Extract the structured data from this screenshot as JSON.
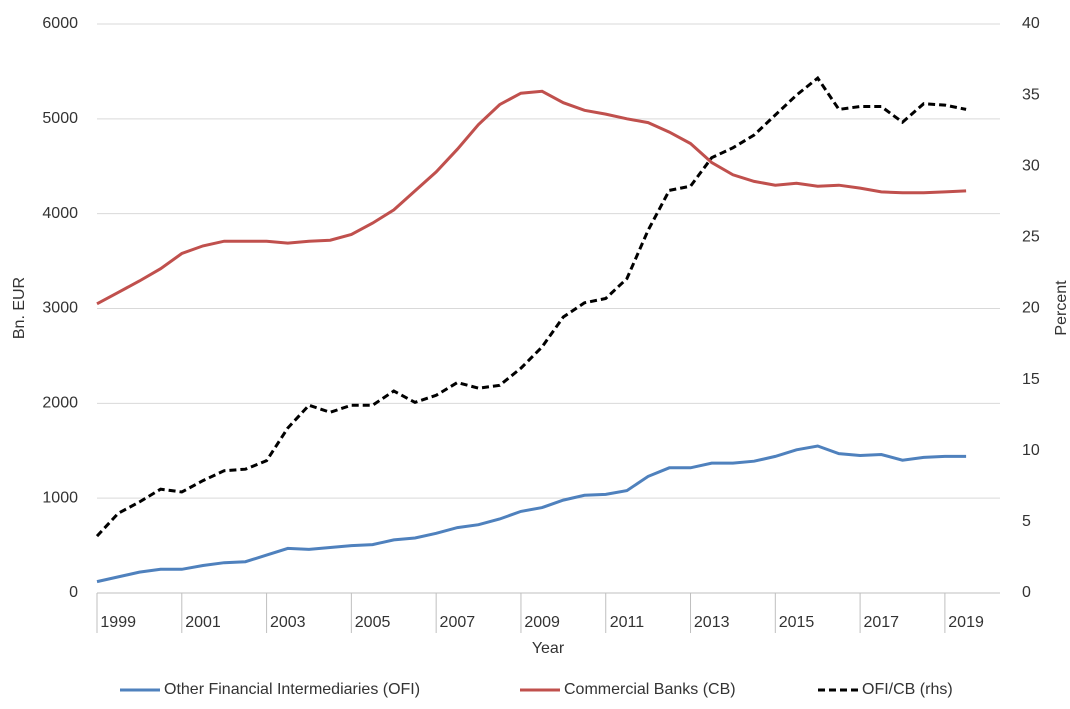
{
  "chart_data": {
    "type": "line",
    "x_label": "Year",
    "y_label": "Bn. EUR",
    "y2_label": "Percent",
    "x": [
      1999,
      1999.5,
      2000,
      2000.5,
      2001,
      2001.5,
      2002,
      2002.5,
      2003,
      2003.5,
      2004,
      2004.5,
      2005,
      2005.5,
      2006,
      2006.5,
      2007,
      2007.5,
      2008,
      2008.5,
      2009,
      2009.5,
      2010,
      2010.5,
      2011,
      2011.5,
      2012,
      2012.5,
      2013,
      2013.5,
      2014,
      2014.5,
      2015,
      2015.5,
      2016,
      2016.5,
      2017,
      2017.5,
      2018,
      2018.5,
      2019,
      2019.5
    ],
    "series": [
      {
        "name": "Other Financial Intermediaries (OFI)",
        "color": "#4f81bd",
        "dash": false,
        "values": [
          120,
          170,
          220,
          250,
          250,
          290,
          320,
          330,
          400,
          470,
          460,
          480,
          500,
          510,
          560,
          580,
          630,
          690,
          720,
          780,
          860,
          900,
          980,
          1030,
          1040,
          1080,
          1230,
          1320,
          1320,
          1370,
          1370,
          1390,
          1440,
          1510,
          1550,
          1470,
          1450,
          1460,
          1400,
          1430,
          1440,
          1440
        ]
      },
      {
        "name": "Commercial Banks (CB)",
        "color": "#c0504d",
        "dash": false,
        "values": [
          3050,
          3170,
          3290,
          3420,
          3580,
          3660,
          3710,
          3710,
          3710,
          3690,
          3710,
          3720,
          3780,
          3900,
          4040,
          4240,
          4440,
          4680,
          4940,
          5150,
          5270,
          5290,
          5170,
          5090,
          5050,
          5000,
          4960,
          4860,
          4740,
          4540,
          4410,
          4340,
          4300,
          4320,
          4290,
          4300,
          4270,
          4230,
          4220,
          4220,
          4230,
          4240
        ]
      },
      {
        "name": "OFI/CB (rhs)",
        "color": "#000000",
        "dash": true,
        "axis": "y2",
        "values": [
          4.0,
          5.6,
          6.4,
          7.3,
          7.1,
          7.9,
          8.6,
          8.7,
          9.3,
          11.6,
          13.2,
          12.7,
          13.2,
          13.2,
          14.2,
          13.4,
          13.9,
          14.8,
          14.4,
          14.6,
          15.8,
          17.3,
          19.4,
          20.4,
          20.7,
          22.1,
          25.5,
          28.3,
          28.6,
          30.6,
          31.3,
          32.2,
          33.6,
          35.0,
          36.2,
          34.0,
          34.2,
          34.2,
          33.1,
          34.4,
          34.3,
          34.0
        ]
      }
    ],
    "xlim": [
      1999,
      2020.3
    ],
    "xticks": [
      1999,
      2001,
      2003,
      2005,
      2007,
      2009,
      2011,
      2013,
      2015,
      2017,
      2019
    ],
    "ylim": [
      0,
      6000
    ],
    "yticks": [
      0,
      1000,
      2000,
      3000,
      4000,
      5000,
      6000
    ],
    "y2lim": [
      0,
      40
    ],
    "y2ticks": [
      0,
      5,
      10,
      15,
      20,
      25,
      30,
      35,
      40
    ],
    "grid": true,
    "legend": "bottom"
  }
}
